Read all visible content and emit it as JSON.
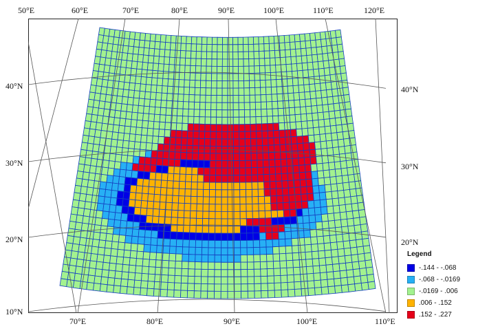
{
  "map": {
    "projection": "conic",
    "cell_colors": {
      "class1": "#0000e6",
      "class2": "#27b0f5",
      "class3": "#a3f28f",
      "class4": "#ffb300",
      "class5": "#e6001a"
    },
    "grid_line_color": "#1540c0",
    "graticule_color": "#555555"
  },
  "labels": {
    "top_longitudes": [
      "50°E",
      "60°E",
      "70°E",
      "80°E",
      "90°E",
      "100°E",
      "110°E",
      "120°E"
    ],
    "bottom_longitudes": [
      "70°E",
      "80°E",
      "90°E",
      "100°E",
      "110°E"
    ],
    "left_latitudes": [
      "40°N",
      "30°N",
      "20°N",
      "10°N"
    ],
    "right_latitudes": [
      "40°N",
      "30°N",
      "20°N"
    ]
  },
  "legend": {
    "title": "Legend",
    "items": [
      {
        "label": "-.144 - -.068",
        "color": "#0000e6"
      },
      {
        "label": "-.068 - -.0169",
        "color": "#27b0f5"
      },
      {
        "label": "-.0169 - .006",
        "color": "#a3f28f"
      },
      {
        "label": ".006 - .152",
        "color": "#ffb300"
      },
      {
        "label": ".152 - .227",
        "color": "#e6001a"
      }
    ]
  }
}
